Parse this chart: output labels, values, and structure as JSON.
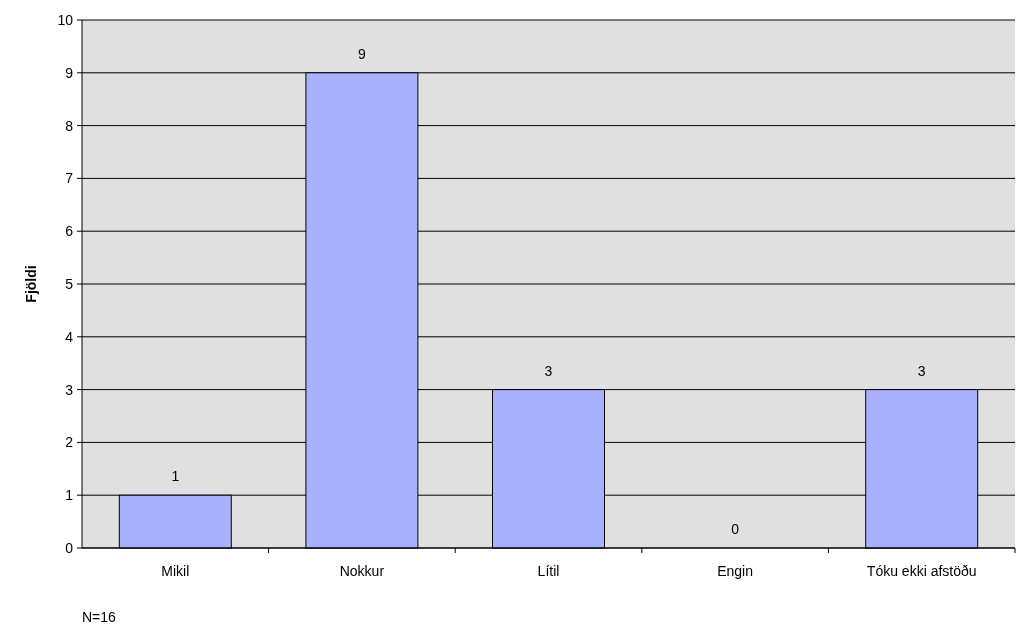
{
  "chart_data": {
    "type": "bar",
    "ylabel": "Fjöldi",
    "categories": [
      "Mikil",
      "Nokkur",
      "Lítil",
      "Engin",
      "Tóku ekki afstöðu"
    ],
    "values": [
      1,
      9,
      3,
      0,
      3
    ],
    "color": "#a9b1fc",
    "ylim": [
      0,
      10
    ],
    "yticks": [
      0,
      1,
      2,
      3,
      4,
      5,
      6,
      7,
      8,
      9,
      10
    ],
    "grid": "y",
    "data_labels": true,
    "annotations": [
      "N=16"
    ]
  }
}
